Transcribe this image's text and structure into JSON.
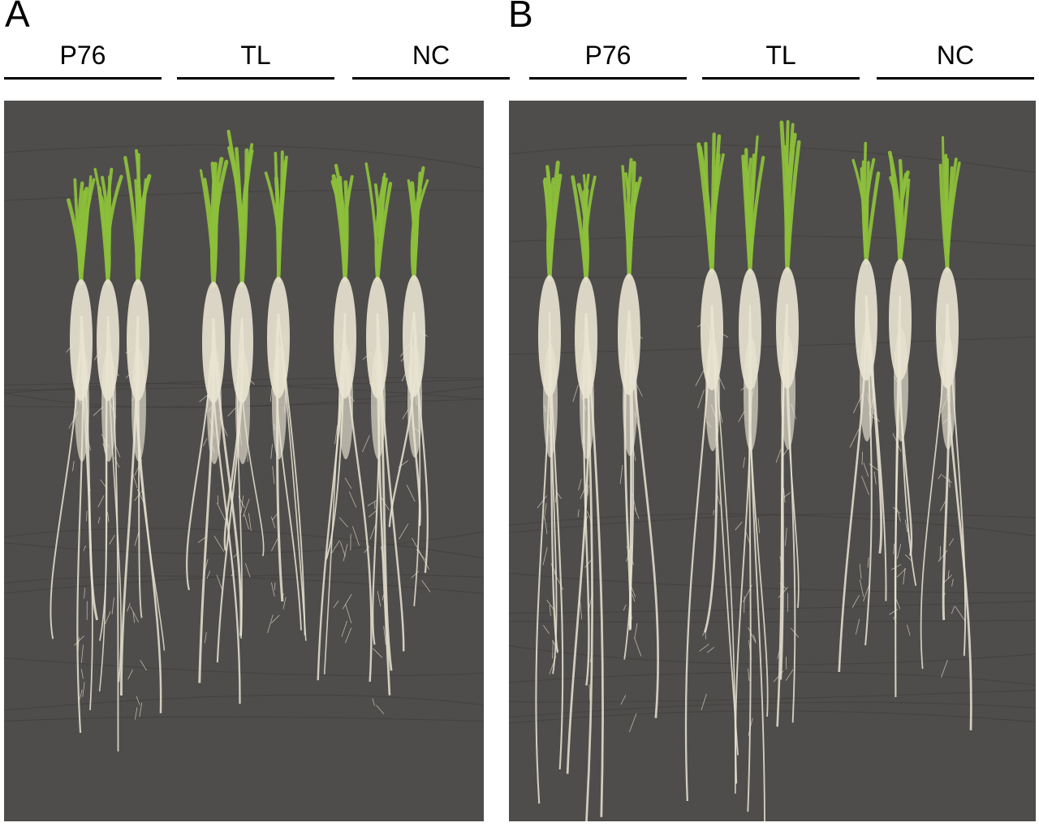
{
  "panels": [
    {
      "letter": "A",
      "groups": [
        {
          "label": "P76"
        },
        {
          "label": "TL"
        },
        {
          "label": "NC"
        }
      ],
      "photo": {
        "icon": "rice-seedlings-roots-photo",
        "background_color": "#4f4d4b",
        "leaf_color": "#8cbf3a",
        "root_color": "#e9e4d2"
      }
    },
    {
      "letter": "B",
      "groups": [
        {
          "label": "P76"
        },
        {
          "label": "TL"
        },
        {
          "label": "NC"
        }
      ],
      "photo": {
        "icon": "rice-seedlings-roots-photo",
        "background_color": "#4f4d4b",
        "leaf_color": "#8cbf3a",
        "root_color": "#e9e4d2"
      }
    }
  ]
}
